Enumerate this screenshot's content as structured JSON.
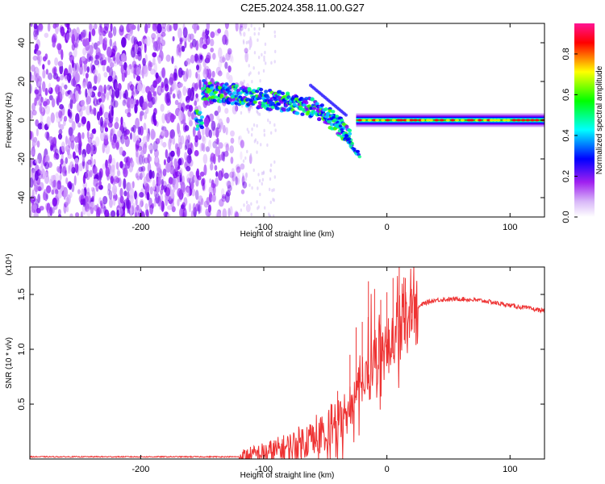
{
  "title": "C2E5.2024.358.11.00.G27",
  "chart_data": [
    {
      "type": "heatmap",
      "xlabel": "Height of straight line (km)",
      "ylabel": "Frequency (Hz)",
      "xlim": [
        -290,
        128
      ],
      "ylim": [
        -50,
        50
      ],
      "xticks": [
        -200,
        -100,
        0,
        100
      ],
      "yticks": [
        -40,
        -20,
        0,
        20,
        40
      ],
      "colorbar": {
        "label": "Normalized spectral amplitude",
        "range": [
          0,
          0.95
        ],
        "ticks": [
          "0.0",
          "0.2",
          "0.4",
          "0.6",
          "0.8"
        ],
        "colormap": [
          "#ffffff",
          "#a020f0",
          "#0000ff",
          "#00ffff",
          "#00ff00",
          "#ffff00",
          "#ff0000",
          "#ff00ff"
        ]
      },
      "features": {
        "noise_region": [
          -290,
          -120
        ],
        "signal_track": [
          [
            -150,
            16
          ],
          [
            -130,
            14
          ],
          [
            -110,
            12
          ],
          [
            -90,
            10
          ],
          [
            -70,
            8
          ],
          [
            -60,
            6
          ],
          [
            -50,
            3
          ],
          [
            -40,
            -2
          ],
          [
            -30,
            -10
          ],
          [
            -25,
            -20
          ],
          [
            -20,
            0
          ],
          [
            0,
            0
          ],
          [
            50,
            0
          ],
          [
            128,
            0
          ]
        ],
        "carrier_frequency_hz": 0
      }
    },
    {
      "type": "line",
      "xlabel": "Height of straight line (km)",
      "ylabel": "SNR (10 * v/v)",
      "y_multiplier": "(x10⁴)",
      "xlim": [
        -290,
        128
      ],
      "ylim": [
        0,
        1.75
      ],
      "xticks": [
        -200,
        -100,
        0,
        100
      ],
      "yticks": [
        "0.5",
        "1.0",
        "1.5"
      ],
      "series": [
        {
          "color": "#ee3333",
          "x": [
            -290,
            -150,
            -120,
            -100,
            -80,
            -60,
            -40,
            -30,
            -20,
            -10,
            0,
            10,
            20,
            30,
            40,
            60,
            80,
            100,
            128
          ],
          "y": [
            0.02,
            0.02,
            0.02,
            0.05,
            0.1,
            0.2,
            0.35,
            0.5,
            0.75,
            0.9,
            1.05,
            1.2,
            1.33,
            1.42,
            1.45,
            1.46,
            1.44,
            1.4,
            1.35
          ],
          "spikes": [
            [
              -40,
              0.62
            ],
            [
              -30,
              0.95
            ],
            [
              -25,
              1.2
            ],
            [
              -20,
              1.25
            ],
            [
              -15,
              1.62
            ],
            [
              -10,
              1.55
            ],
            [
              -5,
              1.45
            ],
            [
              0,
              1.52
            ],
            [
              5,
              1.65
            ],
            [
              10,
              1.77
            ],
            [
              15,
              1.65
            ],
            [
              20,
              1.55
            ]
          ]
        }
      ]
    }
  ]
}
